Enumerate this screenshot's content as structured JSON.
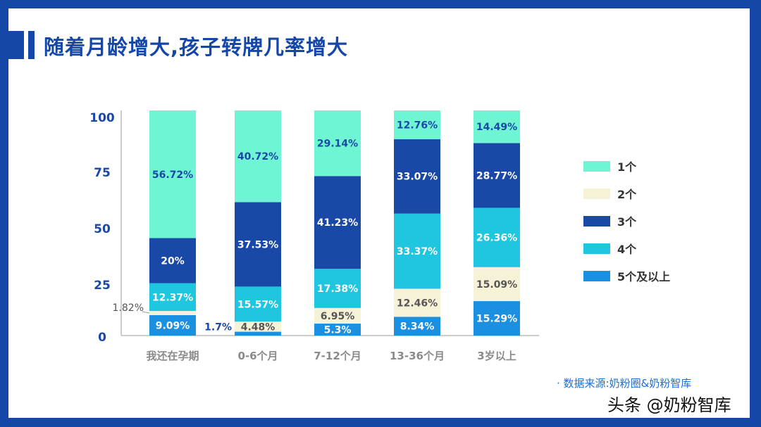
{
  "title": "随着月龄增大,孩子转牌几率增大",
  "source": "· 数据来源:奶粉圈&奶粉智库",
  "watermark": "头条 @奶粉智库",
  "chart_data": {
    "type": "bar",
    "stacked": true,
    "title": "随着月龄增大,孩子转牌几率增大",
    "categories": [
      "我还在孕期",
      "0-6个月",
      "7-12个月",
      "13-36个月",
      "3岁以上"
    ],
    "ylim": [
      0,
      100
    ],
    "yticks": [
      0,
      25,
      50,
      75,
      100
    ],
    "grid": false,
    "legend": "right",
    "series": [
      {
        "name": "5个及以上",
        "color": "#1b8fe0",
        "label_color": "#ffffff",
        "values": [
          9.09,
          1.7,
          5.3,
          8.34,
          15.29
        ],
        "labels": [
          "9.09%",
          "1.7%",
          "5.3%",
          "8.34%",
          "15.29%"
        ]
      },
      {
        "name": "2个",
        "color": "#f6f2d8",
        "label_color": "#555555",
        "values": [
          1.82,
          4.48,
          6.95,
          12.46,
          15.09
        ],
        "labels": [
          "1.82%",
          "4.48%",
          "6.95%",
          "12.46%",
          "15.09%"
        ]
      },
      {
        "name": "4个",
        "color": "#1ec6df",
        "label_color": "#ffffff",
        "values": [
          12.37,
          15.57,
          17.38,
          33.37,
          26.36
        ],
        "labels": [
          "12.37%",
          "15.57%",
          "17.38%",
          "33.37%",
          "26.36%"
        ]
      },
      {
        "name": "3个",
        "color": "#1a48a6",
        "label_color": "#ffffff",
        "values": [
          20,
          37.53,
          41.23,
          33.07,
          28.77
        ],
        "labels": [
          "20%",
          "37.53%",
          "41.23%",
          "33.07%",
          "28.77%"
        ]
      },
      {
        "name": "1个",
        "color": "#6ff4d4",
        "label_color": "#1a48a6",
        "values": [
          56.72,
          40.72,
          29.14,
          12.76,
          14.49
        ],
        "labels": [
          "56.72%",
          "40.72%",
          "29.14%",
          "12.76%",
          "14.49%"
        ]
      }
    ],
    "legend_order": [
      "1个",
      "2个",
      "3个",
      "4个",
      "5个及以上"
    ]
  }
}
